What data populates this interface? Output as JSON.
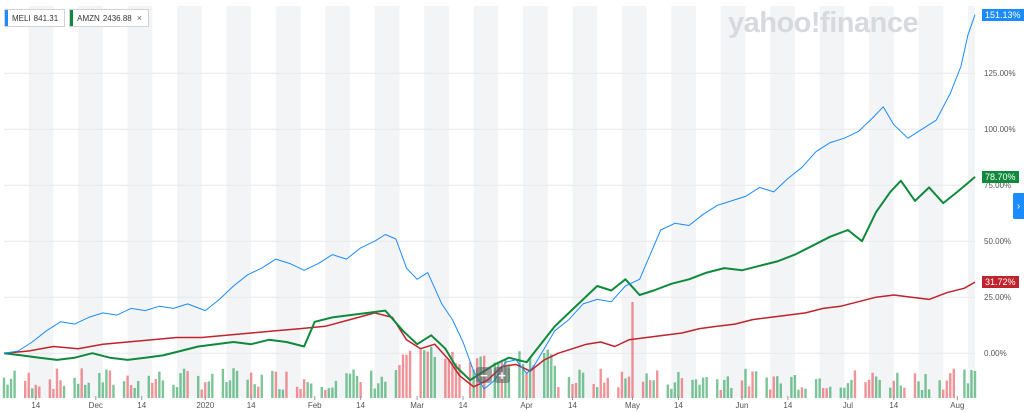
{
  "legend_chips": [
    {
      "symbol": "MELI",
      "price": "841.31",
      "color": "#1a8cff",
      "removable": false
    },
    {
      "symbol": "AMZN",
      "price": "2436.88",
      "color": "#0f8a3d",
      "removable": true,
      "close_icon": "×"
    }
  ],
  "brand": "yahoo!finance",
  "zoom": {
    "out_label": "−",
    "in_label": "+"
  },
  "right_tab_icon": "›",
  "value_tags": [
    {
      "label": "151.13%",
      "value": 151.13,
      "color": "#1a8cff"
    },
    {
      "label": "78.70%",
      "value": 78.7,
      "color": "#0f8a3d"
    },
    {
      "label": "31.72%",
      "value": 31.72,
      "color": "#c0232b"
    }
  ],
  "chart_data": {
    "type": "line",
    "ylim": [
      -20,
      155
    ],
    "y_ticks": [
      0,
      25,
      50,
      75,
      100,
      125
    ],
    "y_tick_labels": [
      "0.00%",
      "25.00%",
      "50.00%",
      "75.00%",
      "100.00%",
      "125.00%"
    ],
    "xlim": [
      "2019-11-05",
      "2020-08-06"
    ],
    "x_ticks": [
      {
        "date": "2019-11-14",
        "label": "14"
      },
      {
        "date": "2019-12-01",
        "label": "Dec"
      },
      {
        "date": "2019-12-14",
        "label": "14"
      },
      {
        "date": "2020-01-01",
        "label": "2020"
      },
      {
        "date": "2020-01-14",
        "label": "14"
      },
      {
        "date": "2020-02-01",
        "label": "Feb"
      },
      {
        "date": "2020-02-14",
        "label": "14"
      },
      {
        "date": "2020-03-01",
        "label": "Mar"
      },
      {
        "date": "2020-03-14",
        "label": "14"
      },
      {
        "date": "2020-04-01",
        "label": "Apr"
      },
      {
        "date": "2020-04-14",
        "label": "14"
      },
      {
        "date": "2020-05-01",
        "label": "May"
      },
      {
        "date": "2020-05-14",
        "label": "14"
      },
      {
        "date": "2020-06-01",
        "label": "Jun"
      },
      {
        "date": "2020-06-14",
        "label": "14"
      },
      {
        "date": "2020-07-01",
        "label": "Jul"
      },
      {
        "date": "2020-07-14",
        "label": "14"
      },
      {
        "date": "2020-08-01",
        "label": "Aug"
      }
    ],
    "grid": true,
    "series": [
      {
        "name": "MELI",
        "color": "#1a8cff",
        "width": 1,
        "points": [
          [
            "2019-11-05",
            0
          ],
          [
            "2019-11-09",
            1
          ],
          [
            "2019-11-13",
            5
          ],
          [
            "2019-11-17",
            10
          ],
          [
            "2019-11-21",
            14
          ],
          [
            "2019-11-25",
            13
          ],
          [
            "2019-11-29",
            16
          ],
          [
            "2019-12-03",
            18
          ],
          [
            "2019-12-07",
            17
          ],
          [
            "2019-12-11",
            20
          ],
          [
            "2019-12-15",
            19
          ],
          [
            "2019-12-19",
            21
          ],
          [
            "2019-12-23",
            20
          ],
          [
            "2019-12-27",
            22
          ],
          [
            "2020-01-01",
            19
          ],
          [
            "2020-01-05",
            24
          ],
          [
            "2020-01-09",
            30
          ],
          [
            "2020-01-13",
            35
          ],
          [
            "2020-01-17",
            38
          ],
          [
            "2020-01-21",
            42
          ],
          [
            "2020-01-25",
            40
          ],
          [
            "2020-01-29",
            37
          ],
          [
            "2020-02-02",
            40
          ],
          [
            "2020-02-06",
            44
          ],
          [
            "2020-02-10",
            42
          ],
          [
            "2020-02-14",
            47
          ],
          [
            "2020-02-18",
            50
          ],
          [
            "2020-02-21",
            53
          ],
          [
            "2020-02-24",
            51
          ],
          [
            "2020-02-27",
            38
          ],
          [
            "2020-03-01",
            33
          ],
          [
            "2020-03-04",
            36
          ],
          [
            "2020-03-08",
            22
          ],
          [
            "2020-03-11",
            15
          ],
          [
            "2020-03-14",
            5
          ],
          [
            "2020-03-17",
            -8
          ],
          [
            "2020-03-20",
            -16
          ],
          [
            "2020-03-23",
            -12
          ],
          [
            "2020-03-26",
            -4
          ],
          [
            "2020-03-29",
            -3
          ],
          [
            "2020-04-01",
            -9
          ],
          [
            "2020-04-03",
            -6
          ],
          [
            "2020-04-06",
            2
          ],
          [
            "2020-04-09",
            10
          ],
          [
            "2020-04-13",
            15
          ],
          [
            "2020-04-17",
            22
          ],
          [
            "2020-04-21",
            24
          ],
          [
            "2020-04-25",
            23
          ],
          [
            "2020-04-29",
            30
          ],
          [
            "2020-05-03",
            33
          ],
          [
            "2020-05-06",
            44
          ],
          [
            "2020-05-09",
            55
          ],
          [
            "2020-05-13",
            58
          ],
          [
            "2020-05-17",
            57
          ],
          [
            "2020-05-21",
            62
          ],
          [
            "2020-05-25",
            66
          ],
          [
            "2020-05-29",
            68
          ],
          [
            "2020-06-02",
            70
          ],
          [
            "2020-06-06",
            74
          ],
          [
            "2020-06-10",
            72
          ],
          [
            "2020-06-14",
            78
          ],
          [
            "2020-06-18",
            83
          ],
          [
            "2020-06-22",
            90
          ],
          [
            "2020-06-26",
            94
          ],
          [
            "2020-06-30",
            96
          ],
          [
            "2020-07-04",
            99
          ],
          [
            "2020-07-08",
            105
          ],
          [
            "2020-07-11",
            110
          ],
          [
            "2020-07-14",
            102
          ],
          [
            "2020-07-18",
            96
          ],
          [
            "2020-07-22",
            100
          ],
          [
            "2020-07-26",
            104
          ],
          [
            "2020-07-30",
            116
          ],
          [
            "2020-08-02",
            128
          ],
          [
            "2020-08-04",
            142
          ],
          [
            "2020-08-06",
            151.13
          ]
        ]
      },
      {
        "name": "AMZN",
        "color": "#0f8a3d",
        "width": 2,
        "points": [
          [
            "2019-11-05",
            0
          ],
          [
            "2019-11-10",
            -1
          ],
          [
            "2019-11-15",
            -2
          ],
          [
            "2019-11-20",
            -3
          ],
          [
            "2019-11-25",
            -2
          ],
          [
            "2019-11-30",
            0
          ],
          [
            "2019-12-05",
            -2
          ],
          [
            "2019-12-10",
            -3
          ],
          [
            "2019-12-15",
            -2
          ],
          [
            "2019-12-20",
            -1
          ],
          [
            "2019-12-25",
            1
          ],
          [
            "2019-12-30",
            3
          ],
          [
            "2020-01-04",
            4
          ],
          [
            "2020-01-09",
            5
          ],
          [
            "2020-01-14",
            4
          ],
          [
            "2020-01-19",
            6
          ],
          [
            "2020-01-24",
            5
          ],
          [
            "2020-01-29",
            3
          ],
          [
            "2020-02-01",
            14
          ],
          [
            "2020-02-06",
            16
          ],
          [
            "2020-02-11",
            17
          ],
          [
            "2020-02-16",
            18
          ],
          [
            "2020-02-21",
            19
          ],
          [
            "2020-02-26",
            10
          ],
          [
            "2020-03-01",
            4
          ],
          [
            "2020-03-05",
            8
          ],
          [
            "2020-03-09",
            2
          ],
          [
            "2020-03-12",
            -6
          ],
          [
            "2020-03-16",
            -12
          ],
          [
            "2020-03-19",
            -9
          ],
          [
            "2020-03-23",
            -5
          ],
          [
            "2020-03-27",
            -2
          ],
          [
            "2020-04-01",
            -4
          ],
          [
            "2020-04-05",
            4
          ],
          [
            "2020-04-09",
            12
          ],
          [
            "2020-04-13",
            18
          ],
          [
            "2020-04-17",
            24
          ],
          [
            "2020-04-21",
            30
          ],
          [
            "2020-04-25",
            28
          ],
          [
            "2020-04-29",
            33
          ],
          [
            "2020-05-03",
            26
          ],
          [
            "2020-05-07",
            28
          ],
          [
            "2020-05-12",
            31
          ],
          [
            "2020-05-17",
            33
          ],
          [
            "2020-05-22",
            36
          ],
          [
            "2020-05-27",
            38
          ],
          [
            "2020-06-01",
            37
          ],
          [
            "2020-06-06",
            39
          ],
          [
            "2020-06-11",
            41
          ],
          [
            "2020-06-16",
            44
          ],
          [
            "2020-06-21",
            48
          ],
          [
            "2020-06-26",
            52
          ],
          [
            "2020-07-01",
            55
          ],
          [
            "2020-07-05",
            50
          ],
          [
            "2020-07-09",
            63
          ],
          [
            "2020-07-13",
            72
          ],
          [
            "2020-07-16",
            77
          ],
          [
            "2020-07-20",
            68
          ],
          [
            "2020-07-24",
            74
          ],
          [
            "2020-07-28",
            67
          ],
          [
            "2020-08-01",
            72
          ],
          [
            "2020-08-04",
            76
          ],
          [
            "2020-08-06",
            78.7
          ]
        ]
      },
      {
        "name": "",
        "color": "#c0232b",
        "width": 1.5,
        "points": [
          [
            "2019-11-05",
            0
          ],
          [
            "2019-11-12",
            1
          ],
          [
            "2019-11-19",
            3
          ],
          [
            "2019-11-26",
            2
          ],
          [
            "2019-12-03",
            4
          ],
          [
            "2019-12-10",
            5
          ],
          [
            "2019-12-17",
            6
          ],
          [
            "2019-12-24",
            7
          ],
          [
            "2019-12-31",
            7
          ],
          [
            "2020-01-07",
            8
          ],
          [
            "2020-01-14",
            9
          ],
          [
            "2020-01-21",
            10
          ],
          [
            "2020-01-28",
            11
          ],
          [
            "2020-02-04",
            12
          ],
          [
            "2020-02-11",
            15
          ],
          [
            "2020-02-18",
            18
          ],
          [
            "2020-02-23",
            16
          ],
          [
            "2020-02-27",
            6
          ],
          [
            "2020-03-02",
            2
          ],
          [
            "2020-03-06",
            4
          ],
          [
            "2020-03-10",
            -3
          ],
          [
            "2020-03-13",
            -10
          ],
          [
            "2020-03-17",
            -15
          ],
          [
            "2020-03-21",
            -12
          ],
          [
            "2020-03-25",
            -6
          ],
          [
            "2020-03-29",
            -5
          ],
          [
            "2020-04-02",
            -8
          ],
          [
            "2020-04-06",
            -3
          ],
          [
            "2020-04-10",
            0
          ],
          [
            "2020-04-14",
            2
          ],
          [
            "2020-04-18",
            4
          ],
          [
            "2020-04-22",
            5
          ],
          [
            "2020-04-26",
            3
          ],
          [
            "2020-04-30",
            6
          ],
          [
            "2020-05-05",
            7
          ],
          [
            "2020-05-10",
            8
          ],
          [
            "2020-05-15",
            9
          ],
          [
            "2020-05-20",
            11
          ],
          [
            "2020-05-25",
            12
          ],
          [
            "2020-05-30",
            13
          ],
          [
            "2020-06-04",
            15
          ],
          [
            "2020-06-09",
            16
          ],
          [
            "2020-06-14",
            17
          ],
          [
            "2020-06-19",
            18
          ],
          [
            "2020-06-24",
            20
          ],
          [
            "2020-06-29",
            21
          ],
          [
            "2020-07-04",
            23
          ],
          [
            "2020-07-09",
            25
          ],
          [
            "2020-07-14",
            26
          ],
          [
            "2020-07-19",
            25
          ],
          [
            "2020-07-24",
            24
          ],
          [
            "2020-07-29",
            27
          ],
          [
            "2020-08-03",
            29
          ],
          [
            "2020-08-06",
            31.72
          ]
        ]
      }
    ]
  }
}
